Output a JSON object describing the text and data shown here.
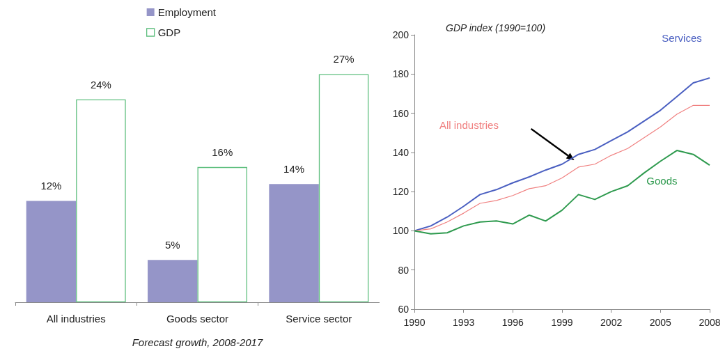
{
  "chart_data": [
    {
      "type": "bar",
      "xlabel": "Forecast growth, 2008-2017",
      "categories": [
        "All industries",
        "Goods sector",
        "Service sector"
      ],
      "series": [
        {
          "name": "Employment",
          "color": "#9595c8",
          "values": [
            12,
            5,
            14
          ],
          "value_labels": [
            "12%",
            "5%",
            "14%"
          ]
        },
        {
          "name": "GDP",
          "color": "#5fbf7f",
          "values": [
            24,
            16,
            27
          ],
          "value_labels": [
            "24%",
            "16%",
            "27%"
          ]
        }
      ],
      "legend": "top",
      "grid": false
    },
    {
      "type": "line",
      "title": "GDP index (1990=100)",
      "x": [
        1990,
        1991,
        1992,
        1993,
        1994,
        1995,
        1996,
        1997,
        1998,
        1999,
        2000,
        2001,
        2002,
        2003,
        2004,
        2005,
        2006,
        2007,
        2008
      ],
      "series": [
        {
          "name": "Services",
          "color": "#4a5fc1",
          "values": [
            100,
            102.5,
            107,
            112.5,
            118.5,
            121,
            124.5,
            127.5,
            131,
            134,
            139,
            141.5,
            146,
            150.5,
            156,
            161.5,
            168.5,
            175.5,
            178
          ]
        },
        {
          "name": "All industries",
          "color": "#f08080",
          "values": [
            100,
            101,
            104.5,
            109,
            114,
            115.5,
            118,
            121.5,
            123,
            127,
            132.5,
            134,
            138.5,
            142,
            147.5,
            153,
            159.5,
            164,
            164
          ]
        },
        {
          "name": "Goods",
          "color": "#2e9a4e",
          "values": [
            100,
            98.5,
            99,
            102.5,
            104.5,
            105,
            103.5,
            108,
            105,
            110.5,
            118.5,
            116,
            120,
            123,
            129.5,
            135.5,
            141,
            139,
            133.5
          ]
        }
      ],
      "xlim": [
        1990,
        2008
      ],
      "xticks": [
        1990,
        1993,
        1996,
        1999,
        2002,
        2005,
        2008
      ],
      "ylim": [
        60,
        200
      ],
      "yticks": [
        60,
        80,
        100,
        120,
        140,
        160,
        180,
        200
      ],
      "grid": false,
      "legend": false,
      "marker": "none",
      "line_style": "solid"
    }
  ]
}
